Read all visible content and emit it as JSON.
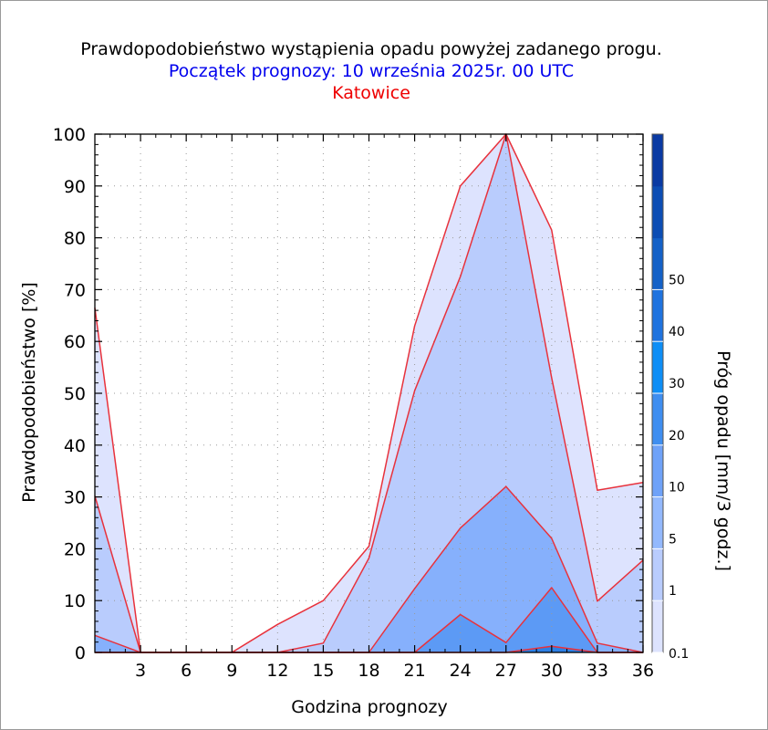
{
  "header": {
    "title": "Prawdopodobieństwo wystąpienia opadu powyżej zadanego progu.",
    "subtitle": "Początek prognozy: 10 września 2025r. 00 UTC",
    "location": "Katowice"
  },
  "chart_data": {
    "type": "area",
    "title": "Prawdopodobieństwo wystąpienia opadu powyżej zadanego progu.",
    "subtitle": "Początek prognozy: 10 września 2025r. 00 UTC",
    "location": "Katowice",
    "xlabel": "Godzina prognozy",
    "ylabel": "Prawdopodobieństwo [%]",
    "colorbar_label": "Próg opadu [mm/3 godz.]",
    "xlim": [
      0,
      36
    ],
    "ylim": [
      0,
      100
    ],
    "x_ticks": [
      3,
      6,
      9,
      12,
      15,
      18,
      21,
      24,
      27,
      30,
      33,
      36
    ],
    "y_ticks": [
      0,
      10,
      20,
      30,
      40,
      50,
      60,
      70,
      80,
      90,
      100
    ],
    "grid": true,
    "x": [
      0,
      3,
      6,
      9,
      12,
      15,
      18,
      21,
      24,
      27,
      30,
      33,
      36
    ],
    "series": [
      {
        "name": "0.1",
        "color": "#dde3fe",
        "values": [
          66.5,
          0,
          0,
          0,
          5.4,
          10,
          20.5,
          63,
          90,
          100,
          81.5,
          31.3,
          32.8
        ]
      },
      {
        "name": "1",
        "color": "#b9ccfd",
        "values": [
          30.2,
          0,
          0,
          0,
          0,
          1.8,
          18.2,
          50.5,
          72.5,
          100,
          53,
          9.9,
          17.8
        ]
      },
      {
        "name": "5",
        "color": "#86b0fc",
        "values": [
          3.3,
          0,
          0,
          0,
          0,
          0,
          0,
          12.3,
          24,
          32,
          22,
          1.8,
          0
        ]
      },
      {
        "name": "10",
        "color": "#5c9af5",
        "values": [
          0,
          0,
          0,
          0,
          0,
          0,
          0,
          0,
          7.3,
          1.9,
          12.5,
          0,
          0
        ]
      },
      {
        "name": "20",
        "color": "#2d7fe4",
        "values": [
          0,
          0,
          0,
          0,
          0,
          0,
          0,
          0,
          0,
          0,
          1.2,
          0,
          0
        ]
      }
    ],
    "colorbar": {
      "tick_labels": [
        "0.1",
        "1",
        "5",
        "10",
        "20",
        "30",
        "40",
        "50"
      ],
      "colors": [
        "#dde3fe",
        "#b9ccfd",
        "#93b9fd",
        "#6fa2f8",
        "#3f8ef0",
        "#0e8ef6",
        "#1f73df",
        "#1461c7",
        "#0c4db4",
        "#0a3aa3"
      ]
    }
  }
}
